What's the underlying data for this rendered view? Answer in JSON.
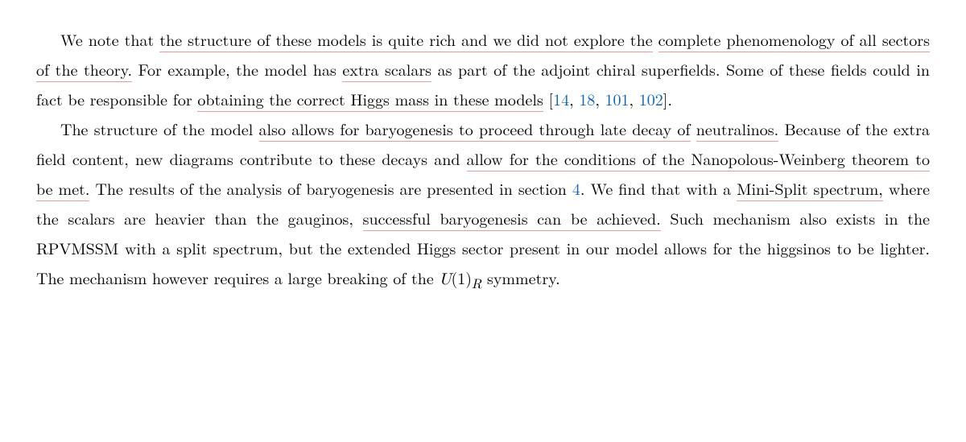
{
  "para1": {
    "t1": "We note that ",
    "u1": "the structure of these models is quite rich and we did not explore the",
    "t2": " ",
    "u2": "complete phenomenology of all sectors of the theory.",
    "t3": " For example, the model has ",
    "u3": "extra scalars",
    "t4": " as part of the adjoint chiral superfields. Some of these fields could in fact be responsible for ",
    "u4": "obtaining the correct Higgs mass in these models",
    "t5": " [",
    "c1": "14",
    "t6": ", ",
    "c2": "18",
    "t7": ", ",
    "c3": "101",
    "t8": ", ",
    "c4": "102",
    "t9": "]."
  },
  "para2": {
    "t1": "The structure of the model ",
    "u1": "also allows for baryogenesis to proceed through late decay of",
    "t2": " ",
    "u2": "neutralinos.",
    "t3": " Because of the extra field content, new diagrams contribute to these decays and ",
    "u3": "allow for the conditions of the Nanopolous-Weinberg theorem to be met.",
    "t4": " The results of the analysis of baryogenesis are presented in section ",
    "secref": "4",
    "t5": ". We find that with a ",
    "u4": "Mini-Split spectrum,",
    "t6": " where the scalars are heavier than the gauginos, ",
    "u5": "successful baryogenesis can be achieved.",
    "t7": " Such mechanism also exists in the RPVMSSM with a split spectrum, but the extended Higgs sector present in our model allows for the higgsinos to be lighter. The mechanism however requires a large breaking of the ",
    "sym_U": "U",
    "sym_open": "(1)",
    "sym_R": "R",
    "t8": " symmetry."
  }
}
